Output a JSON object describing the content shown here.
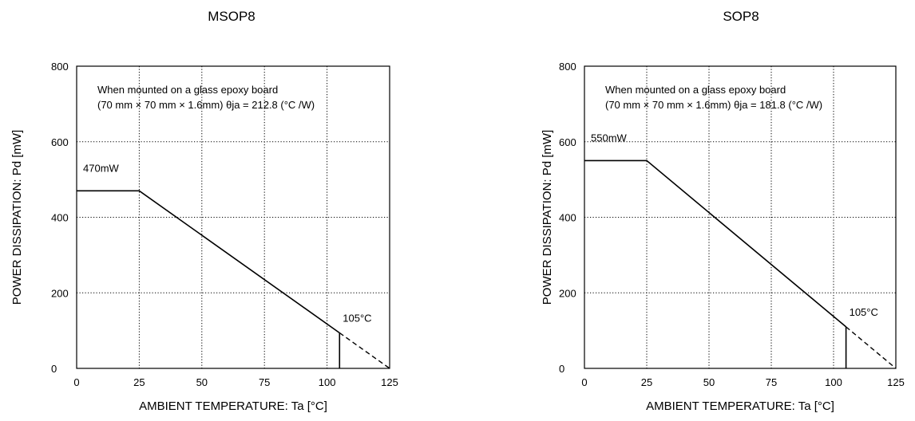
{
  "chart_data": [
    {
      "type": "line",
      "title": "MSOP8",
      "xlabel": "AMBIENT TEMPERATURE: Ta [°C]",
      "ylabel": "POWER DISSIPATION: Pd [mW]",
      "xlim": [
        0,
        125
      ],
      "ylim": [
        0,
        800
      ],
      "x_ticks": [
        "0",
        "25",
        "50",
        "75",
        "100",
        "125"
      ],
      "y_ticks": [
        "0",
        "200",
        "400",
        "600",
        "800"
      ],
      "grid": "dotted",
      "note_line1": "When mounted on a glass epoxy board",
      "note_line2": "(70 mm × 70 mm × 1.6mm) θja = 212.8 (°C /W)",
      "power_label": "470mW",
      "temp_label": "105°C",
      "solid": {
        "x": [
          0,
          25,
          105
        ],
        "y": [
          470,
          470,
          94
        ]
      },
      "dashed": {
        "x": [
          105,
          125
        ],
        "y": [
          94,
          0
        ]
      },
      "cutoff_x": 105
    },
    {
      "type": "line",
      "title": "SOP8",
      "xlabel": "AMBIENT TEMPERATURE: Ta [°C]",
      "ylabel": "POWER DISSIPATION: Pd [mW]",
      "xlim": [
        0,
        125
      ],
      "ylim": [
        0,
        800
      ],
      "x_ticks": [
        "0",
        "25",
        "50",
        "75",
        "100",
        "125"
      ],
      "y_ticks": [
        "0",
        "200",
        "400",
        "600",
        "800"
      ],
      "grid": "dotted",
      "note_line1": "When mounted on a glass epoxy board",
      "note_line2": "(70 mm × 70 mm × 1.6mm) θja = 181.8 (°C /W)",
      "power_label": "550mW",
      "temp_label": "105°C",
      "solid": {
        "x": [
          0,
          25,
          105
        ],
        "y": [
          550,
          550,
          110
        ]
      },
      "dashed": {
        "x": [
          105,
          125
        ],
        "y": [
          110,
          0
        ]
      },
      "cutoff_x": 105
    }
  ]
}
